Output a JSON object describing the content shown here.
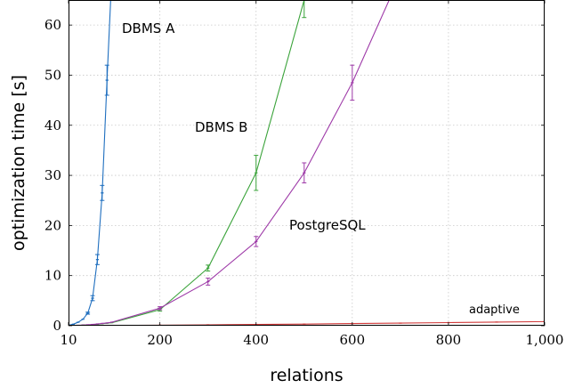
{
  "chart_data": {
    "type": "line",
    "xlabel": "relations",
    "ylabel": "optimization time [s]",
    "xlim": [
      10,
      1000
    ],
    "ylim": [
      0,
      65
    ],
    "x_ticks": [
      10,
      200,
      400,
      600,
      800,
      1000
    ],
    "x_tick_labels": [
      "10",
      "200",
      "400",
      "600",
      "800",
      "1,000"
    ],
    "y_ticks": [
      0,
      10,
      20,
      30,
      40,
      50,
      60
    ],
    "y_tick_labels": [
      "0",
      "10",
      "20",
      "30",
      "40",
      "50",
      "60"
    ],
    "grid": true,
    "series": [
      {
        "name": "DBMS A",
        "color": "#1f6fbf",
        "x": [
          10,
          20,
          30,
          40,
          50,
          60,
          70,
          80,
          90,
          100
        ],
        "y": [
          0.1,
          0.3,
          0.7,
          1.3,
          2.5,
          5.5,
          13.2,
          26.5,
          49.0,
          70.0
        ],
        "err_low": [
          0,
          0,
          0,
          0,
          0.2,
          0.5,
          1.0,
          1.5,
          3.0,
          0
        ],
        "err_high": [
          0,
          0,
          0,
          0,
          0.2,
          0.5,
          1.0,
          1.5,
          3.0,
          0
        ]
      },
      {
        "name": "DBMS B",
        "color": "#3aa33a",
        "x": [
          10,
          20,
          30,
          40,
          50,
          60,
          70,
          80,
          90,
          100,
          200,
          300,
          400,
          500,
          560
        ],
        "y": [
          0.02,
          0.04,
          0.06,
          0.1,
          0.15,
          0.2,
          0.28,
          0.4,
          0.5,
          0.6,
          3.2,
          11.5,
          30.5,
          65.0,
          90.0
        ],
        "err_low": [
          0,
          0,
          0,
          0,
          0,
          0,
          0,
          0,
          0,
          0,
          0.3,
          0.6,
          3.5,
          3.5,
          0
        ],
        "err_high": [
          0,
          0,
          0,
          0,
          0,
          0,
          0,
          0,
          0,
          0,
          0.3,
          0.6,
          3.5,
          3.5,
          0
        ]
      },
      {
        "name": "PostgreSQL",
        "color": "#9e3aa8",
        "x": [
          10,
          20,
          30,
          40,
          50,
          60,
          70,
          80,
          90,
          100,
          200,
          300,
          400,
          500,
          600,
          700
        ],
        "y": [
          0.02,
          0.05,
          0.08,
          0.12,
          0.18,
          0.25,
          0.35,
          0.45,
          0.55,
          0.7,
          3.5,
          8.8,
          16.8,
          30.5,
          48.5,
          70.0
        ],
        "err_low": [
          0,
          0,
          0,
          0,
          0,
          0,
          0,
          0,
          0,
          0,
          0.3,
          0.7,
          1.0,
          2.0,
          3.5,
          0
        ],
        "err_high": [
          0,
          0,
          0,
          0,
          0,
          0,
          0,
          0,
          0,
          0,
          0.3,
          0.7,
          1.0,
          2.0,
          3.5,
          0
        ]
      },
      {
        "name": "adaptive",
        "color": "#d13a3a",
        "x": [
          10,
          20,
          30,
          40,
          50,
          60,
          70,
          80,
          90,
          100,
          200,
          300,
          400,
          500,
          600,
          700,
          800,
          900,
          1000
        ],
        "y": [
          0.01,
          0.01,
          0.02,
          0.02,
          0.03,
          0.03,
          0.04,
          0.04,
          0.05,
          0.05,
          0.1,
          0.18,
          0.25,
          0.33,
          0.43,
          0.52,
          0.62,
          0.72,
          0.82
        ],
        "err_low": [],
        "err_high": []
      }
    ],
    "annotations": [
      {
        "text": "DBMS A",
        "series": 0
      },
      {
        "text": "DBMS B",
        "series": 1
      },
      {
        "text": "PostgreSQL",
        "series": 2
      },
      {
        "text": "adaptive",
        "series": 3
      }
    ]
  }
}
